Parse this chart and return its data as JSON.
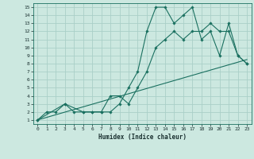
{
  "xlabel": "Humidex (Indice chaleur)",
  "ylabel": "",
  "bg_color": "#cce8e0",
  "grid_color": "#aacfc8",
  "line_color": "#1a7060",
  "spine_color": "#1a7060",
  "xlim": [
    -0.5,
    23.5
  ],
  "ylim": [
    0.5,
    15.5
  ],
  "xticks": [
    0,
    1,
    2,
    3,
    4,
    5,
    6,
    7,
    8,
    9,
    10,
    11,
    12,
    13,
    14,
    15,
    16,
    17,
    18,
    19,
    20,
    21,
    22,
    23
  ],
  "yticks": [
    1,
    2,
    3,
    4,
    5,
    6,
    7,
    8,
    9,
    10,
    11,
    12,
    13,
    14,
    15
  ],
  "line1_x": [
    0,
    1,
    2,
    3,
    4,
    5,
    6,
    7,
    8,
    9,
    10,
    11,
    12,
    13,
    14,
    15,
    16,
    17,
    18,
    19,
    20,
    21,
    22,
    23
  ],
  "line1_y": [
    1,
    2,
    2,
    3,
    2,
    2,
    2,
    2,
    2,
    3,
    5,
    7,
    12,
    15,
    15,
    13,
    14,
    15,
    11,
    12,
    9,
    13,
    9,
    8
  ],
  "line2_x": [
    0,
    3,
    5,
    6,
    7,
    8,
    9,
    10,
    11,
    12,
    13,
    14,
    15,
    16,
    17,
    18,
    19,
    20,
    21,
    22,
    23
  ],
  "line2_y": [
    1,
    3,
    2,
    2,
    2,
    4,
    4,
    3,
    5,
    7,
    10,
    11,
    12,
    11,
    12,
    12,
    13,
    12,
    12,
    9,
    8
  ],
  "line3_x": [
    0,
    23
  ],
  "line3_y": [
    1,
    8.5
  ]
}
